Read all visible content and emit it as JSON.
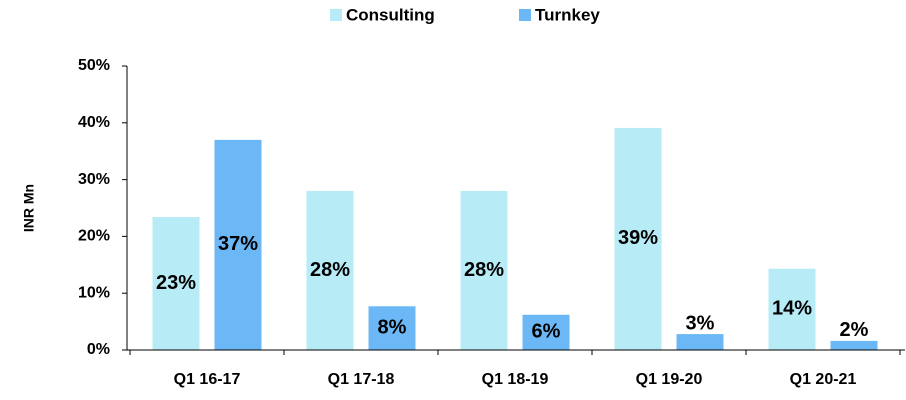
{
  "chart_data": {
    "type": "bar",
    "y_label": "INR Mn",
    "categories": [
      "Q1 16-17",
      "Q1 17-18",
      "Q1 18-19",
      "Q1 19-20",
      "Q1 20-21"
    ],
    "series": [
      {
        "name": "Consulting",
        "color": "#b7ecf6",
        "values": [
          23.4,
          28,
          28,
          39.1,
          14.3
        ],
        "value_labels": [
          "23%",
          "28%",
          "28%",
          "39%",
          "14%"
        ]
      },
      {
        "name": "Turnkey",
        "color": "#6cb8f6",
        "values": [
          37,
          7.7,
          6.2,
          2.8,
          1.6
        ],
        "value_labels": [
          "37%",
          "8%",
          "6%",
          "3%",
          "2%"
        ]
      }
    ],
    "ylim": [
      0,
      50
    ],
    "yticks": [
      {
        "value": 0,
        "label": "0%"
      },
      {
        "value": 10,
        "label": "10%"
      },
      {
        "value": 20,
        "label": "20%"
      },
      {
        "value": 30,
        "label": "30%"
      },
      {
        "value": 40,
        "label": "40%"
      },
      {
        "value": 50,
        "label": "50%"
      }
    ]
  }
}
